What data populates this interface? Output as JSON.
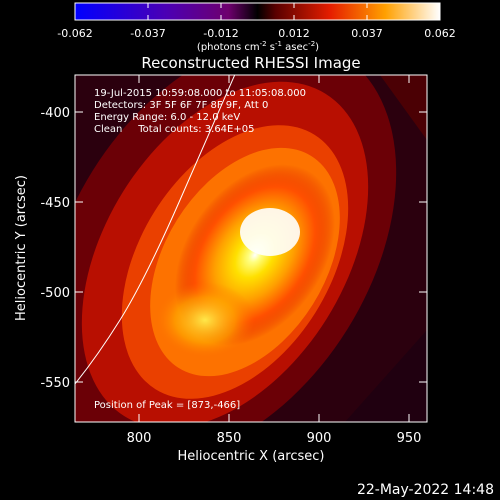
{
  "colorbar": {
    "ticks": [
      "-0.062",
      "-0.037",
      "-0.012",
      "0.012",
      "0.037",
      "0.062"
    ],
    "unit_pre": "(photons cm",
    "unit_exp1": "-2",
    "unit_mid": " s",
    "unit_exp2": "-1",
    "unit_mid2": " asec",
    "unit_exp3": "-2",
    "unit_post": ")"
  },
  "image": {
    "title": "Reconstructed RHESSI Image",
    "info_lines": [
      "19-Jul-2015 10:59:08.000 to 11:05:08.000",
      "Detectors: 3F 5F 6F 7F 8F 9F, Att 0",
      "Energy Range: 6.0 - 12.0 keV",
      "Clean     Total counts: 3.64E+05"
    ],
    "peak_text": "Position of Peak = [873,-466]",
    "x_axis": {
      "label": "Heliocentric X (arcsec)",
      "ticks": [
        "800",
        "850",
        "900",
        "950"
      ]
    },
    "y_axis": {
      "label": "Heliocentric Y (arcsec)",
      "ticks": [
        "-400",
        "-450",
        "-500",
        "-550"
      ]
    }
  },
  "footer": {
    "date": "22-May-2022 14:48"
  }
}
